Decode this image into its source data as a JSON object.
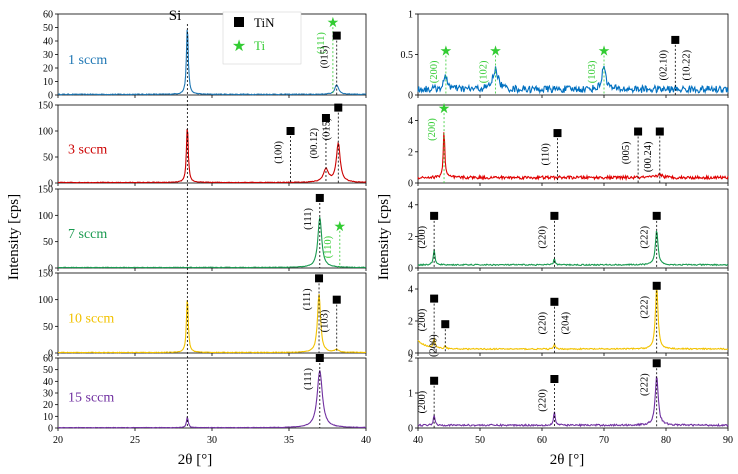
{
  "figure": {
    "y_label": "Intensity [cps]",
    "x_label": "2θ [°]",
    "si_label": "Si",
    "legend": [
      {
        "label": "TiN",
        "marker": "square",
        "color": "#000000"
      },
      {
        "label": "Ti",
        "marker": "star",
        "color": "#33cc33"
      }
    ]
  },
  "chart_data": [
    {
      "type": "line",
      "panel": "left",
      "row": 0,
      "sample": "1 sccm",
      "color": "#1f77b4",
      "xlim": [
        20,
        40
      ],
      "ylim": [
        0,
        60
      ],
      "yticks": [
        0,
        10,
        20,
        30,
        40,
        50,
        60
      ],
      "xticks": [
        20,
        25,
        30,
        35,
        40
      ],
      "peaks": [
        {
          "x": 28.4,
          "y": 51,
          "w": 0.07
        },
        {
          "x": 38.1,
          "y": 7,
          "w": 0.15
        }
      ],
      "noise": 0.6,
      "baseline": 0.5,
      "annotations": [
        {
          "x": 37.85,
          "y": 54,
          "marker": "star",
          "label": "(111)",
          "color": "#33cc33"
        },
        {
          "x": 38.1,
          "y": 44,
          "marker": "square",
          "label": "(015)",
          "color": "#000000"
        }
      ]
    },
    {
      "type": "line",
      "panel": "left",
      "row": 1,
      "sample": "3 sccm",
      "color": "#cc0000",
      "xlim": [
        20,
        40
      ],
      "ylim": [
        0,
        150
      ],
      "yticks": [
        0,
        50,
        100,
        150
      ],
      "xticks": [
        20,
        25,
        30,
        35,
        40
      ],
      "peaks": [
        {
          "x": 28.4,
          "y": 110,
          "w": 0.07
        },
        {
          "x": 37.4,
          "y": 25,
          "w": 0.2
        },
        {
          "x": 38.2,
          "y": 75,
          "w": 0.15
        }
      ],
      "noise": 1.2,
      "baseline": 1,
      "annotations": [
        {
          "x": 35.1,
          "y": 100,
          "marker": "square",
          "label": "(100)",
          "color": "#000000"
        },
        {
          "x": 37.4,
          "y": 125,
          "marker": "square",
          "label": "(00.12)",
          "color": "#000000"
        },
        {
          "x": 38.2,
          "y": 145,
          "marker": "square",
          "label": "(015)",
          "color": "#000000"
        }
      ]
    },
    {
      "type": "line",
      "panel": "left",
      "row": 2,
      "sample": "7 sccm",
      "color": "#1a9a50",
      "xlim": [
        20,
        40
      ],
      "ylim": [
        0,
        150
      ],
      "yticks": [
        0,
        50,
        100,
        150
      ],
      "xticks": [
        20,
        25,
        30,
        35,
        40
      ],
      "peaks": [
        {
          "x": 37.0,
          "y": 95,
          "w": 0.15
        }
      ],
      "noise": 1,
      "baseline": 1,
      "annotations": [
        {
          "x": 37.0,
          "y": 133,
          "marker": "square",
          "label": "(111)",
          "color": "#000000"
        },
        {
          "x": 38.3,
          "y": 80,
          "marker": "star",
          "label": "(110)",
          "color": "#33cc33"
        }
      ]
    },
    {
      "type": "line",
      "panel": "left",
      "row": 3,
      "sample": "10 sccm",
      "color": "#f2c200",
      "xlim": [
        20,
        40
      ],
      "ylim": [
        0,
        150
      ],
      "yticks": [
        0,
        50,
        100,
        150
      ],
      "xticks": [
        20,
        25,
        30,
        35,
        40
      ],
      "peaks": [
        {
          "x": 28.4,
          "y": 105,
          "w": 0.07
        },
        {
          "x": 36.95,
          "y": 110,
          "w": 0.12
        },
        {
          "x": 38.1,
          "y": 5,
          "w": 0.15
        }
      ],
      "noise": 1,
      "baseline": 1,
      "annotations": [
        {
          "x": 36.95,
          "y": 140,
          "marker": "square",
          "label": "(111)",
          "color": "#000000"
        },
        {
          "x": 38.1,
          "y": 100,
          "marker": "square",
          "label": "(103)",
          "color": "#000000"
        }
      ]
    },
    {
      "type": "line",
      "panel": "left",
      "row": 4,
      "sample": "15 sccm",
      "color": "#7030a0",
      "xlim": [
        20,
        40
      ],
      "ylim": [
        0,
        60
      ],
      "yticks": [
        0,
        10,
        20,
        30,
        40,
        50,
        60
      ],
      "xticks": [
        20,
        25,
        30,
        35,
        40
      ],
      "xtick_labels_visible": true,
      "peaks": [
        {
          "x": 28.4,
          "y": 9,
          "w": 0.07
        },
        {
          "x": 37.0,
          "y": 49,
          "w": 0.2
        }
      ],
      "noise": 0.4,
      "baseline": 0.3,
      "annotations": [
        {
          "x": 37.0,
          "y": 60,
          "marker": "square",
          "label": "(111)",
          "color": "#000000"
        }
      ]
    },
    {
      "type": "line",
      "panel": "right",
      "row": 0,
      "sample": "1 sccm",
      "color": "#0070c0",
      "xlim": [
        40,
        90
      ],
      "ylim": [
        0,
        1
      ],
      "yticks": [
        0,
        0.5,
        1
      ],
      "yticklabels": [
        "0",
        "0.5",
        "1"
      ],
      "xticks": [
        40,
        50,
        60,
        70,
        80,
        90
      ],
      "peaks": [
        {
          "x": 44.5,
          "y": 0.15,
          "w": 0.4
        },
        {
          "x": 52.5,
          "y": 0.25,
          "w": 0.5
        },
        {
          "x": 70.0,
          "y": 0.3,
          "w": 0.35
        }
      ],
      "noise": 0.09,
      "baseline": 0.07,
      "annotations": [
        {
          "x": 44.5,
          "y": 0.55,
          "marker": "star",
          "label": "(200)",
          "color": "#33cc33"
        },
        {
          "x": 52.5,
          "y": 0.55,
          "marker": "star",
          "label": "(102)",
          "color": "#33cc33"
        },
        {
          "x": 70.0,
          "y": 0.55,
          "marker": "star",
          "label": "(103)",
          "color": "#33cc33"
        },
        {
          "x": 81.5,
          "y": 0.68,
          "marker": "square",
          "label": "(02.10)",
          "color": "#000000"
        },
        {
          "x": 81.5,
          "y": 0.68,
          "marker": "none",
          "label": "(10.22)",
          "color": "#000000"
        }
      ]
    },
    {
      "type": "line",
      "panel": "right",
      "row": 1,
      "sample": "3 sccm",
      "color": "#e00000",
      "xlim": [
        40,
        90
      ],
      "ylim": [
        0,
        5
      ],
      "yticks": [
        0,
        2,
        4
      ],
      "xticks": [
        40,
        50,
        60,
        70,
        80,
        90
      ],
      "peaks": [
        {
          "x": 44.2,
          "y": 3.0,
          "w": 0.15
        },
        {
          "x": 79.0,
          "y": 0.2,
          "w": 0.5
        }
      ],
      "noise": 0.2,
      "baseline": 0.35,
      "annotations": [
        {
          "x": 44.2,
          "y": 4.8,
          "marker": "star",
          "label": "(200)",
          "color": "#33cc33"
        },
        {
          "x": 62.5,
          "y": 3.2,
          "marker": "square",
          "label": "(110)",
          "color": "#000000"
        },
        {
          "x": 75.5,
          "y": 3.3,
          "marker": "square",
          "label": "(005)",
          "color": "#000000"
        },
        {
          "x": 79.0,
          "y": 3.3,
          "marker": "square",
          "label": "(00.24)",
          "color": "#000000"
        }
      ]
    },
    {
      "type": "line",
      "panel": "right",
      "row": 2,
      "sample": "7 sccm",
      "color": "#1a9a50",
      "xlim": [
        40,
        90
      ],
      "ylim": [
        0,
        5
      ],
      "yticks": [
        0,
        2,
        4
      ],
      "xticks": [
        40,
        50,
        60,
        70,
        80,
        90
      ],
      "peaks": [
        {
          "x": 42.6,
          "y": 1.0,
          "w": 0.15
        },
        {
          "x": 62.0,
          "y": 0.4,
          "w": 0.15
        },
        {
          "x": 78.5,
          "y": 2.2,
          "w": 0.25
        }
      ],
      "noise": 0.08,
      "baseline": 0.2,
      "annotations": [
        {
          "x": 42.6,
          "y": 3.3,
          "marker": "square",
          "label": "(200)",
          "color": "#000000"
        },
        {
          "x": 62.0,
          "y": 3.3,
          "marker": "square",
          "label": "(220)",
          "color": "#000000"
        },
        {
          "x": 78.5,
          "y": 3.3,
          "marker": "square",
          "label": "(222)",
          "color": "#000000"
        }
      ]
    },
    {
      "type": "line",
      "panel": "right",
      "row": 3,
      "sample": "10 sccm",
      "color": "#f2c200",
      "xlim": [
        40,
        90
      ],
      "ylim": [
        0,
        5
      ],
      "yticks": [
        0,
        2,
        4
      ],
      "xticks": [
        40,
        50,
        60,
        70,
        80,
        90
      ],
      "peaks": [
        {
          "x": 42.6,
          "y": 0.6,
          "w": 0.15
        },
        {
          "x": 44.4,
          "y": 0.2,
          "w": 0.15
        },
        {
          "x": 62.0,
          "y": 0.3,
          "w": 0.15
        },
        {
          "x": 78.5,
          "y": 3.9,
          "w": 0.25
        }
      ],
      "noise": 0.08,
      "baseline": 0.25,
      "decay": 0.5,
      "annotations": [
        {
          "x": 42.6,
          "y": 3.4,
          "marker": "square",
          "label": "(200)",
          "color": "#000000"
        },
        {
          "x": 44.4,
          "y": 1.8,
          "marker": "square",
          "label": "(200)",
          "color": "#000000"
        },
        {
          "x": 62.0,
          "y": 3.2,
          "marker": "square",
          "label": "(220)",
          "color": "#000000"
        },
        {
          "x": 62.0,
          "y": 3.2,
          "marker": "none",
          "label": "(204)",
          "color": "#000000"
        },
        {
          "x": 78.5,
          "y": 4.2,
          "marker": "square",
          "label": "(222)",
          "color": "#000000"
        }
      ]
    },
    {
      "type": "line",
      "panel": "right",
      "row": 4,
      "sample": "15 sccm",
      "color": "#7030a0",
      "xlim": [
        40,
        90
      ],
      "ylim": [
        0,
        2
      ],
      "yticks": [
        0,
        1,
        2
      ],
      "xticks": [
        40,
        50,
        60,
        70,
        80,
        90
      ],
      "xtick_labels_visible": true,
      "peaks": [
        {
          "x": 42.6,
          "y": 0.3,
          "w": 0.15
        },
        {
          "x": 62.0,
          "y": 0.4,
          "w": 0.15
        },
        {
          "x": 78.5,
          "y": 1.4,
          "w": 0.3
        }
      ],
      "noise": 0.05,
      "baseline": 0.08,
      "annotations": [
        {
          "x": 42.6,
          "y": 1.35,
          "marker": "square",
          "label": "(200)",
          "color": "#000000"
        },
        {
          "x": 62.0,
          "y": 1.4,
          "marker": "square",
          "label": "(220)",
          "color": "#000000"
        },
        {
          "x": 78.5,
          "y": 1.85,
          "marker": "square",
          "label": "(222)",
          "color": "#000000"
        }
      ]
    }
  ]
}
